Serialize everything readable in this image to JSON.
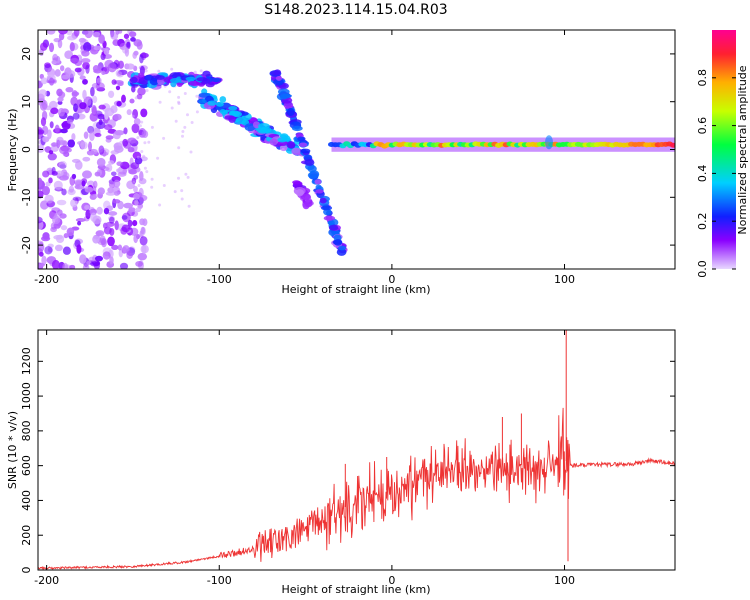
{
  "title": "S148.2023.114.15.04.R03",
  "colors": {
    "snr_line": "#ee3333",
    "colorbar": [
      "#e8d8ff",
      "#8a00ff",
      "#1020ff",
      "#00cfff",
      "#00ff40",
      "#c8ff00",
      "#ffb000",
      "#ff2030",
      "#ff0090"
    ]
  },
  "chart_data": [
    {
      "type": "heatmap",
      "xlabel": "Height of straight line (km)",
      "ylabel": "Frequency (Hz)",
      "xlim": [
        -205,
        164
      ],
      "ylim": [
        -25,
        25
      ],
      "xticks": [
        -200,
        -100,
        0,
        100
      ],
      "yticks": [
        -20,
        -10,
        0,
        10,
        20
      ],
      "colorbar": {
        "label": "Normalized spectral amplitude",
        "range": [
          0,
          1
        ],
        "ticks": [
          "0.0",
          "0.2",
          "0.4",
          "0.6",
          "0.8"
        ]
      },
      "features": [
        {
          "name": "noise",
          "x": [
            -205,
            -155
          ],
          "y": [
            -25,
            25
          ],
          "amplitude": 0.15
        },
        {
          "name": "upper band",
          "x": [
            -152,
            -100
          ],
          "y": [
            13,
            16
          ],
          "amplitude": 0.3
        },
        {
          "name": "descending band",
          "x": [
            -110,
            -55
          ],
          "y": [
            11,
            0
          ],
          "amplitude": 0.3
        },
        {
          "name": "steep band",
          "x": [
            -68,
            -28
          ],
          "y": [
            17,
            -22
          ],
          "amplitude": 0.25
        },
        {
          "name": "secondary branch",
          "x": [
            -55,
            -48
          ],
          "y": [
            -7,
            -12
          ],
          "amplitude": 0.2
        },
        {
          "name": "carrier",
          "x": [
            -35,
            164
          ],
          "y": [
            1,
            1
          ],
          "amplitude": 0.85
        }
      ]
    },
    {
      "type": "line",
      "xlabel": "Height of straight line (km)",
      "ylabel": "SNR (10 * v/v)",
      "xlim": [
        -205,
        164
      ],
      "ylim": [
        0,
        1380
      ],
      "xticks": [
        -200,
        -100,
        0,
        100
      ],
      "yticks": [
        0,
        200,
        400,
        600,
        800,
        1000,
        1200
      ],
      "envelope": [
        {
          "x": -205,
          "y": 10
        },
        {
          "x": -150,
          "y": 20
        },
        {
          "x": -120,
          "y": 45
        },
        {
          "x": -100,
          "y": 80
        },
        {
          "x": -80,
          "y": 120
        },
        {
          "x": -60,
          "y": 180
        },
        {
          "x": -40,
          "y": 290
        },
        {
          "x": -20,
          "y": 400
        },
        {
          "x": 0,
          "y": 470
        },
        {
          "x": 20,
          "y": 540
        },
        {
          "x": 40,
          "y": 590
        },
        {
          "x": 60,
          "y": 610
        },
        {
          "x": 80,
          "y": 600
        },
        {
          "x": 96,
          "y": 600
        },
        {
          "x": 100,
          "y": 640
        },
        {
          "x": 103,
          "y": 600
        },
        {
          "x": 120,
          "y": 605
        },
        {
          "x": 140,
          "y": 610
        },
        {
          "x": 150,
          "y": 630
        },
        {
          "x": 164,
          "y": 610
        }
      ],
      "peaks": [
        {
          "x": -27,
          "y": 610
        },
        {
          "x": -3,
          "y": 650
        },
        {
          "x": 64,
          "y": 880
        },
        {
          "x": 75,
          "y": 900
        },
        {
          "x": 101,
          "y": 1380
        },
        {
          "x": 102,
          "y": 50
        }
      ]
    }
  ]
}
